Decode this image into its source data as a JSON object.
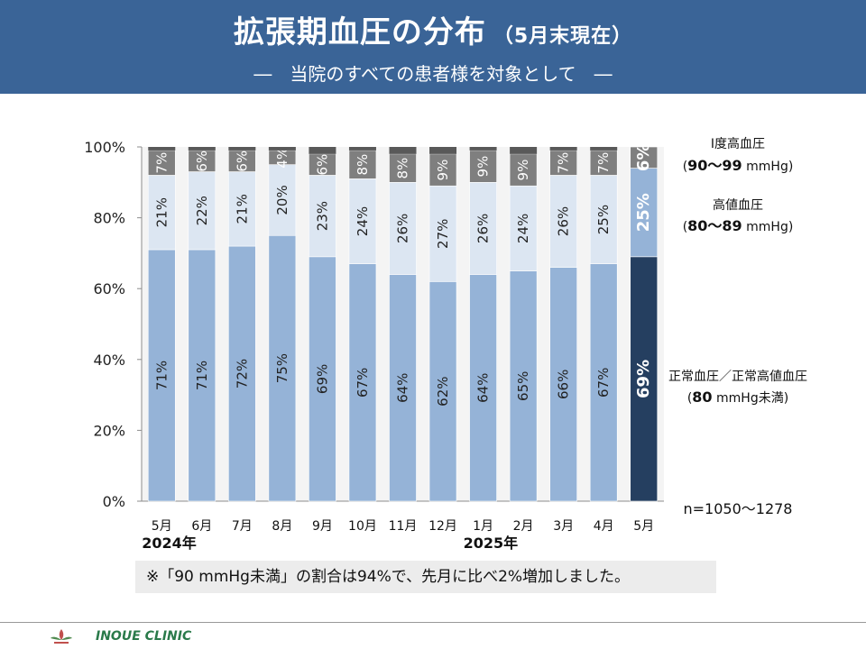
{
  "header": {
    "title": "拡張期血圧の分布",
    "title_sub": "（5月末現在）",
    "subtitle": "―　当院のすべての患者様を対象として　―",
    "bg_color": "#3a6497"
  },
  "chart_data": {
    "type": "bar",
    "stacked": true,
    "categories": [
      "5月",
      "6月",
      "7月",
      "8月",
      "9月",
      "10月",
      "11月",
      "12月",
      "1月",
      "2月",
      "3月",
      "4月",
      "5月"
    ],
    "year_labels": [
      {
        "label": "2024年",
        "index": 0
      },
      {
        "label": "2025年",
        "index": 8
      }
    ],
    "series": [
      {
        "key": "normal",
        "values": [
          71,
          71,
          72,
          75,
          69,
          67,
          64,
          62,
          64,
          65,
          66,
          67,
          69
        ],
        "color": "#95b3d7",
        "highlight_color": "#253f60"
      },
      {
        "key": "high_normal",
        "values": [
          21,
          22,
          21,
          20,
          23,
          24,
          26,
          27,
          26,
          24,
          26,
          25,
          25
        ],
        "color": "#dce6f2",
        "highlight_color": "#95b3d7"
      },
      {
        "key": "grade1",
        "values": [
          7,
          6,
          6,
          4,
          6,
          8,
          8,
          9,
          9,
          9,
          7,
          7,
          6
        ],
        "color": "#7f7f7f",
        "highlight_color": "#7f7f7f"
      }
    ],
    "highlight_index": 12,
    "y_ticks": [
      "0%",
      "20%",
      "40%",
      "60%",
      "80%",
      "100%"
    ],
    "ylim": [
      0,
      100
    ],
    "grid": false,
    "legend_annotations": [
      {
        "series": "grade1",
        "line1": "Ⅰ度高血圧",
        "line2_bold": "90～99",
        "line2_rest": " mmHg)",
        "line2_prefix": "("
      },
      {
        "series": "high_normal",
        "line1": "高値血圧",
        "line2_bold": "80～89",
        "line2_rest": " mmHg)",
        "line2_prefix": "("
      },
      {
        "series": "normal",
        "line1": "正常血圧／正常高値血圧",
        "line2_bold": "80",
        "line2_rest": " mmHg未満)",
        "line2_prefix": "("
      }
    ],
    "n_label": "n=1050～1278"
  },
  "footnote": "※「90 mmHg未満」の割合は94%で、先月に比べ2%増加しました。",
  "footer": {
    "clinic_name": "INOUE CLINIC"
  }
}
